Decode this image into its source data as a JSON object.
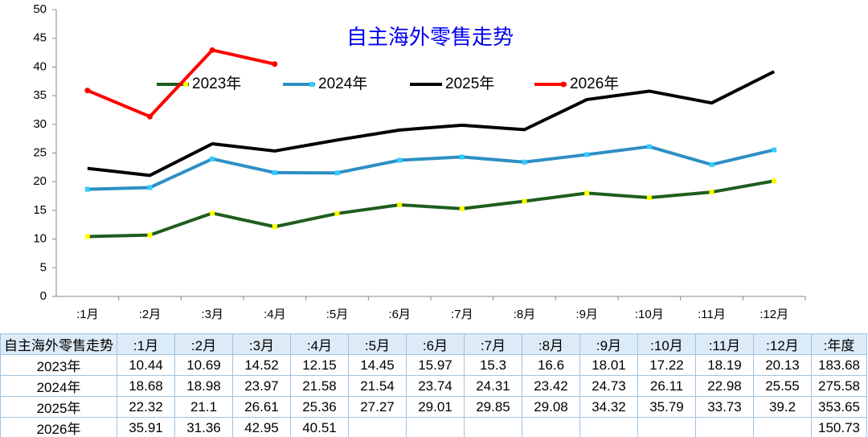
{
  "chart_data": {
    "type": "line",
    "title": "自主海外零售走势",
    "categories": [
      ":1月",
      ":2月",
      ":3月",
      ":4月",
      ":5月",
      ":6月",
      ":7月",
      ":8月",
      ":9月",
      ":10月",
      ":11月",
      ":12月"
    ],
    "series": [
      {
        "name": "2023年",
        "color": "#1e5e1e",
        "marker_color": "#ffff00",
        "marker": "square",
        "values": [
          10.44,
          10.69,
          14.52,
          12.15,
          14.45,
          15.97,
          15.3,
          16.6,
          18.01,
          17.22,
          18.19,
          20.13
        ]
      },
      {
        "name": "2024年",
        "color": "#2e8fc4",
        "marker_color": "#33ccff",
        "marker": "square",
        "values": [
          18.68,
          18.98,
          23.97,
          21.58,
          21.54,
          23.74,
          24.31,
          23.42,
          24.73,
          26.11,
          22.98,
          25.55
        ]
      },
      {
        "name": "2025年",
        "color": "#000000",
        "values": [
          22.32,
          21.1,
          26.61,
          25.36,
          27.27,
          29.01,
          29.85,
          29.08,
          34.32,
          35.79,
          33.73,
          39.2
        ]
      },
      {
        "name": "2026年",
        "color": "#ff0000",
        "marker_color": "#ff0000",
        "marker": "circle",
        "values": [
          35.91,
          31.36,
          42.95,
          40.51,
          null,
          null,
          null,
          null,
          null,
          null,
          null,
          null
        ]
      }
    ],
    "ylim": [
      0,
      50
    ],
    "yticks": [
      0,
      5,
      10,
      15,
      20,
      25,
      30,
      35,
      40,
      45,
      50
    ],
    "grid": false,
    "legend": "top",
    "table": {
      "total_header": ":年度",
      "totals": [
        183.68,
        275.58,
        353.65,
        150.73
      ]
    }
  }
}
